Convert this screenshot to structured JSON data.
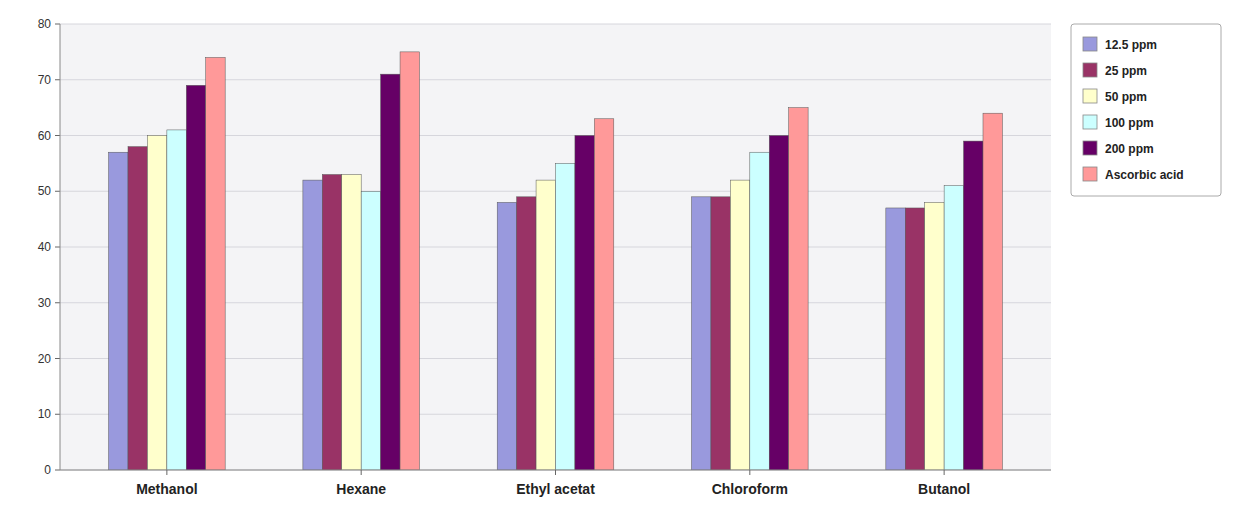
{
  "chart_data": {
    "type": "bar",
    "categories": [
      "Methanol",
      "Hexane",
      "Ethyl acetat",
      "Chloroform",
      "Butanol"
    ],
    "series": [
      {
        "name": "12.5 ppm",
        "color": "#9999DD",
        "values": [
          57,
          52,
          48,
          49,
          47
        ]
      },
      {
        "name": "25 ppm",
        "color": "#993366",
        "values": [
          58,
          53,
          49,
          49,
          47
        ]
      },
      {
        "name": "50 ppm",
        "color": "#FFFFCC",
        "values": [
          60,
          53,
          52,
          52,
          48
        ]
      },
      {
        "name": "100 ppm",
        "color": "#CCFFFF",
        "values": [
          61,
          50,
          55,
          57,
          51
        ]
      },
      {
        "name": "200 ppm",
        "color": "#660066",
        "values": [
          69,
          71,
          60,
          60,
          59
        ]
      },
      {
        "name": "Ascorbic acid",
        "color": "#FF9999",
        "values": [
          74,
          75,
          63,
          65,
          64
        ]
      }
    ],
    "ylim": [
      0,
      80
    ],
    "yticks": [
      0,
      10,
      20,
      30,
      40,
      50,
      60,
      70,
      80
    ],
    "grid": true,
    "legend": "right"
  }
}
